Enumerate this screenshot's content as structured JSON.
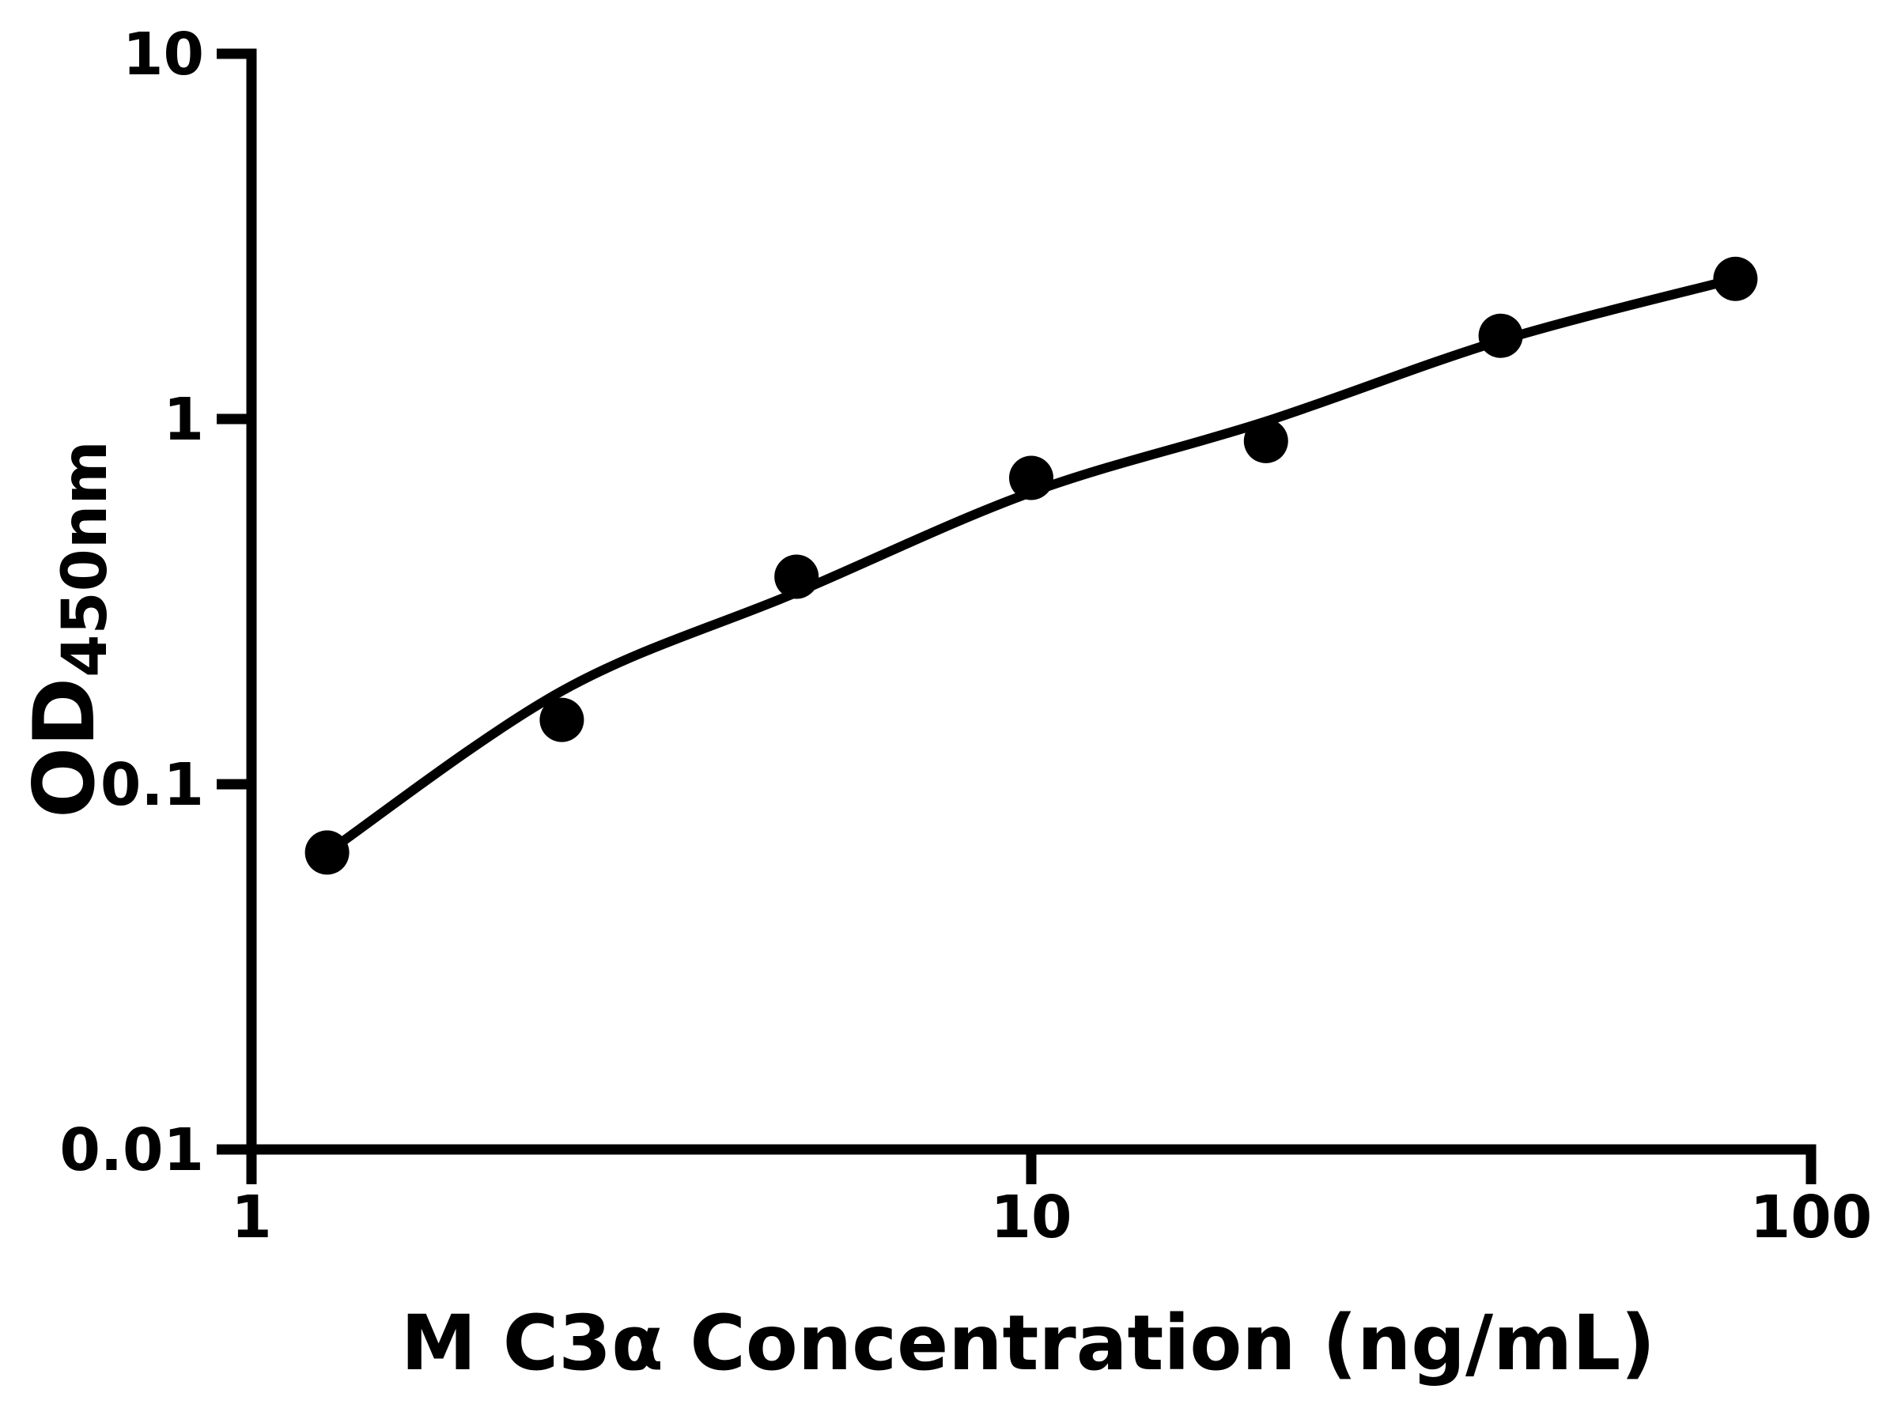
{
  "chart_data": {
    "type": "scatter",
    "title": "",
    "xlabel": "M C3α Concentration (ng/mL)",
    "ylabel_main": "OD",
    "ylabel_sub": "450nm",
    "grid": false,
    "legend": false,
    "background_color": "#ffffff",
    "axis_color": "#000000",
    "marker_color": "#000000",
    "curve_color": "#000000",
    "xaxis": {
      "scale": "log",
      "lim": [
        1,
        100
      ],
      "ticks": [
        {
          "value": 1,
          "label": "1"
        },
        {
          "value": 10,
          "label": "10"
        },
        {
          "value": 100,
          "label": "100"
        }
      ]
    },
    "yaxis": {
      "scale": "log",
      "lim": [
        0.01,
        10
      ],
      "ticks": [
        {
          "value": 10,
          "label": "10"
        },
        {
          "value": 1,
          "label": "1"
        },
        {
          "value": 0.1,
          "label": "0.1"
        },
        {
          "value": 0.01,
          "label": "0.01"
        }
      ]
    },
    "series": [
      {
        "name": "standard-points",
        "marker": "circle",
        "points": [
          {
            "x": 1.25,
            "y": 0.065
          },
          {
            "x": 2.5,
            "y": 0.15
          },
          {
            "x": 5,
            "y": 0.37
          },
          {
            "x": 10,
            "y": 0.69
          },
          {
            "x": 20,
            "y": 0.87
          },
          {
            "x": 40,
            "y": 1.69
          },
          {
            "x": 80,
            "y": 2.42
          }
        ]
      }
    ],
    "fit_curve": {
      "name": "four-parameter-fit",
      "points": [
        {
          "x": 1.25,
          "y": 0.065
        },
        {
          "x": 2.5,
          "y": 0.18
        },
        {
          "x": 5,
          "y": 0.335
        },
        {
          "x": 10,
          "y": 0.63
        },
        {
          "x": 20,
          "y": 0.985
        },
        {
          "x": 40,
          "y": 1.64
        },
        {
          "x": 80,
          "y": 2.42
        }
      ]
    }
  }
}
